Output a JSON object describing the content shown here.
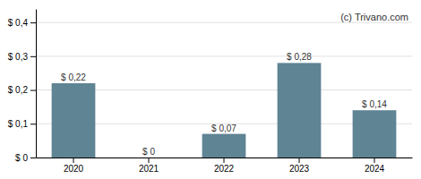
{
  "chart_data": {
    "type": "bar",
    "categories": [
      "2020",
      "2021",
      "2022",
      "2023",
      "2024"
    ],
    "values": [
      0.22,
      0.0,
      0.07,
      0.28,
      0.14
    ],
    "value_labels": [
      "$ 0,22",
      "$ 0",
      "$ 0,07",
      "$ 0,28",
      "$ 0,14"
    ],
    "color": "#5f8494",
    "ylim": [
      0,
      0.44
    ],
    "yticks": [
      {
        "value": 0.0,
        "label": "$ 0"
      },
      {
        "value": 0.1,
        "label": "$ 0,1"
      },
      {
        "value": 0.2,
        "label": "$ 0,2"
      },
      {
        "value": 0.3,
        "label": "$ 0,3"
      },
      {
        "value": 0.4,
        "label": "$ 0,4"
      }
    ],
    "grid": true,
    "data_labels": true,
    "annotations": [
      "(c) Trivano.com"
    ]
  }
}
